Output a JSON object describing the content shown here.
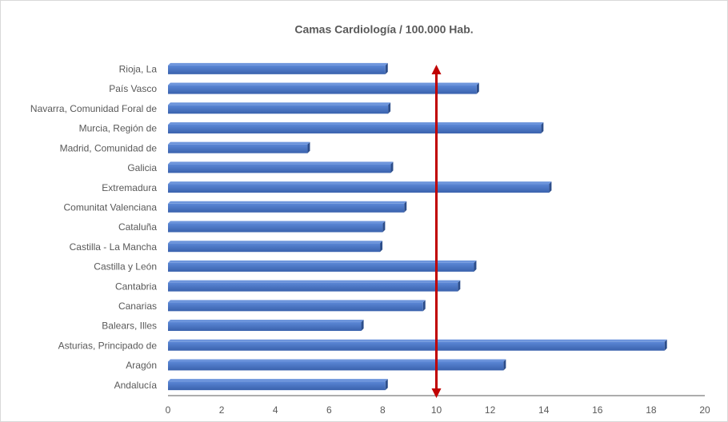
{
  "chart_data": {
    "type": "bar",
    "orientation": "horizontal",
    "title": "Camas Cardiología / 100.000 Hab.",
    "categories": [
      "Andalucía",
      "Aragón",
      "Asturias, Principado de",
      "Balears, Illes",
      "Canarias",
      "Cantabria",
      "Castilla y León",
      "Castilla - La Mancha",
      "Cataluña",
      "Comunitat Valenciana",
      "Extremadura",
      "Galicia",
      "Madrid, Comunidad de",
      "Murcia, Región de",
      "Navarra, Comunidad Foral de",
      "País Vasco",
      "Rioja, La"
    ],
    "values": [
      8.1,
      12.5,
      18.5,
      7.2,
      9.5,
      10.8,
      11.4,
      7.9,
      8.0,
      8.8,
      14.2,
      8.3,
      5.2,
      13.9,
      8.2,
      11.5,
      8.1
    ],
    "color": "#4472c4",
    "reference_line": {
      "value": 10,
      "color": "#c00000"
    },
    "xlim": [
      0,
      20
    ],
    "xticks": [
      0,
      2,
      4,
      6,
      8,
      10,
      12,
      14,
      16,
      18,
      20
    ],
    "grid": false
  }
}
